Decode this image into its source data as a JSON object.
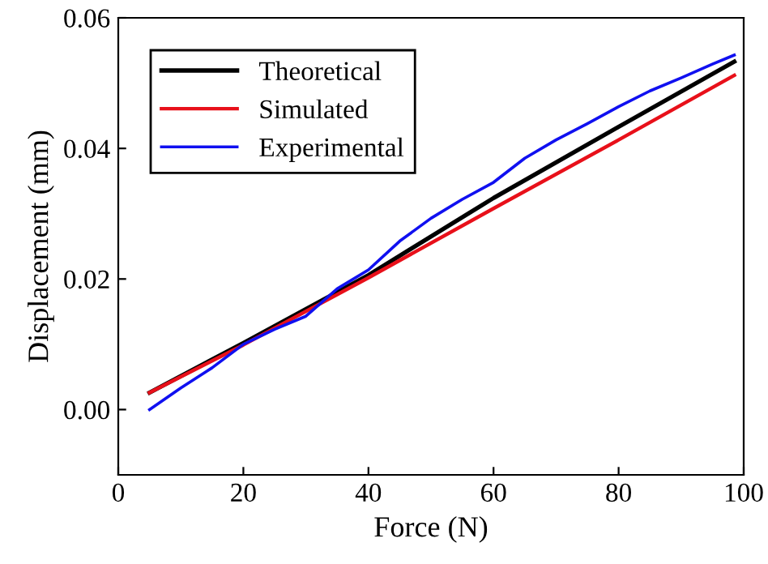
{
  "chart_data": {
    "type": "line",
    "xlabel": "Force (N)",
    "ylabel": "Displacement (mm)",
    "xlim": [
      0,
      100
    ],
    "xticks": [
      0,
      20,
      40,
      60,
      80,
      100
    ],
    "ylim": [
      -0.01,
      0.06
    ],
    "yticks": [
      {
        "value": 0,
        "label": "0.00"
      },
      {
        "value": 0.02,
        "label": "0.02"
      },
      {
        "value": 0.04,
        "label": "0.04"
      },
      {
        "value": 0.06,
        "label": "0.06"
      }
    ],
    "grid": false,
    "legend": "top left",
    "marker": "none",
    "line_style": "solid",
    "series": [
      {
        "name": "Theoretical",
        "color": "#000000",
        "x": [
          5,
          20,
          40,
          60,
          80,
          98.5
        ],
        "values": [
          0.0026,
          0.0102,
          0.0206,
          0.0324,
          0.0433,
          0.0533
        ]
      },
      {
        "name": "Simulated",
        "color": "#e8101a",
        "x": [
          5,
          20,
          40,
          60,
          80,
          98.5
        ],
        "values": [
          0.0026,
          0.0099,
          0.0202,
          0.0308,
          0.0413,
          0.0512
        ]
      },
      {
        "name": "Experimental",
        "color": "#1010f0",
        "x": [
          5,
          10,
          15,
          20,
          25,
          30,
          35,
          40,
          45,
          50,
          55,
          60,
          65,
          70,
          75,
          80,
          85,
          90,
          95,
          98.5
        ],
        "values": [
          0.0,
          0.0033,
          0.0064,
          0.01,
          0.0123,
          0.0143,
          0.0185,
          0.0214,
          0.0258,
          0.0293,
          0.0322,
          0.0348,
          0.0385,
          0.0413,
          0.0438,
          0.0464,
          0.0488,
          0.0508,
          0.0529,
          0.0543
        ]
      }
    ]
  }
}
